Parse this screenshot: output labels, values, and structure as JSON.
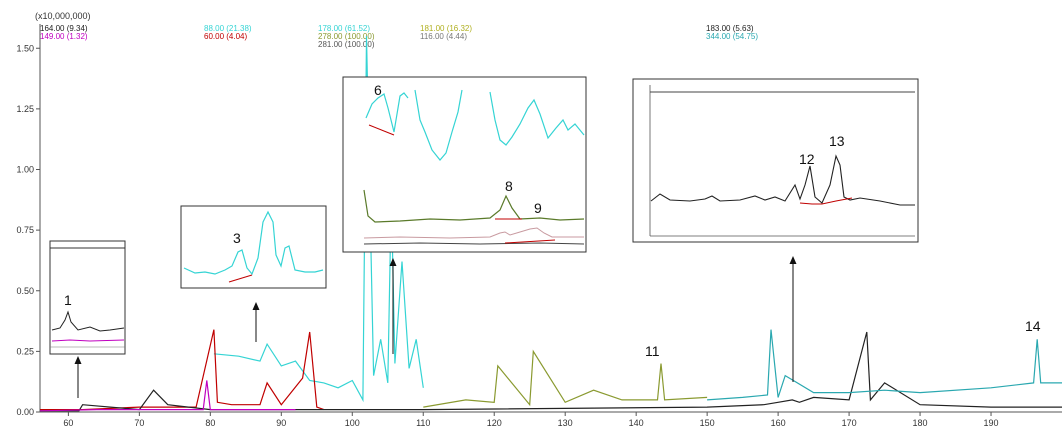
{
  "chart_data": {
    "type": "line",
    "title": "",
    "y_multiplier_label": "(x10,000,000)",
    "xlabel": "",
    "ylabel": "",
    "xlim": [
      56,
      200
    ],
    "ylim": [
      0,
      1.6
    ],
    "x_ticks": [
      "60",
      "70",
      "80",
      "90",
      "100",
      "110",
      "120",
      "130",
      "140",
      "150",
      "160",
      "170",
      "180",
      "190"
    ],
    "x_tick_values": [
      60,
      70,
      80,
      90,
      100,
      110,
      120,
      130,
      140,
      150,
      160,
      170,
      180,
      190
    ],
    "y_ticks": [
      "0.00",
      "0.25",
      "0.50",
      "0.75",
      "1.00",
      "1.25",
      "1.50"
    ],
    "y_tick_values": [
      0,
      0.25,
      0.5,
      0.75,
      1.0,
      1.25,
      1.5
    ],
    "grid": false,
    "legend": {
      "placement": "top",
      "entries": [
        {
          "text": "164.00 (9.34)",
          "color": "#222222"
        },
        {
          "text": "149.00 (1.32)",
          "color": "#c000c0"
        },
        {
          "text": "88.00 (21.38)",
          "color": "#35d4d4"
        },
        {
          "text": "60.00 (4.04)",
          "color": "#c00000"
        },
        {
          "text": "178.00 (61.52)",
          "color": "#35d4d4"
        },
        {
          "text": "278.00 (100.00)",
          "color": "#8a9a30"
        },
        {
          "text": "281.00 (100.00)",
          "color": "#555555"
        },
        {
          "text": "181.00 (16.32)",
          "color": "#b0b020"
        },
        {
          "text": "116.00 (4.44)",
          "color": "#777777"
        },
        {
          "text": "183.00 (5.63)",
          "color": "#222222"
        },
        {
          "text": "344.00 (54.75)",
          "color": "#2aa8b0"
        }
      ]
    },
    "series": [
      {
        "color": "#35d4d4",
        "x": [
          80.5,
          84,
          87,
          88,
          90,
          92,
          94,
          96,
          98,
          100,
          101.5,
          102,
          103,
          104,
          105,
          105.5,
          106,
          107,
          108,
          109,
          110
        ],
        "y": [
          0.24,
          0.23,
          0.21,
          0.28,
          0.19,
          0.21,
          0.13,
          0.12,
          0.1,
          0.13,
          0.05,
          1.55,
          0.15,
          0.3,
          0.12,
          0.9,
          0.2,
          0.62,
          0.18,
          0.3,
          0.1
        ]
      },
      {
        "color": "#c00000",
        "x": [
          56,
          62,
          70,
          78,
          80.5,
          81,
          83,
          87,
          88,
          90,
          93,
          94,
          95,
          96
        ],
        "y": [
          0.01,
          0.01,
          0.02,
          0.02,
          0.34,
          0.04,
          0.03,
          0.03,
          0.12,
          0.03,
          0.14,
          0.33,
          0.02,
          0.01
        ]
      },
      {
        "color": "#222222",
        "x": [
          56,
          61.5,
          62,
          70,
          72,
          74,
          80,
          110,
          150,
          158,
          160,
          162,
          163,
          165,
          170,
          172.5,
          173,
          175,
          180,
          190,
          200
        ],
        "y": [
          0.005,
          0.005,
          0.03,
          0.01,
          0.09,
          0.03,
          0.01,
          0.01,
          0.02,
          0.03,
          0.04,
          0.05,
          0.04,
          0.06,
          0.05,
          0.33,
          0.05,
          0.12,
          0.03,
          0.02,
          0.02
        ]
      },
      {
        "color": "#8a9a30",
        "x": [
          110,
          116,
          120,
          120.5,
          125,
          125.5,
          130,
          134,
          138,
          143,
          143.5,
          144,
          150
        ],
        "y": [
          0.02,
          0.05,
          0.04,
          0.19,
          0.03,
          0.25,
          0.04,
          0.09,
          0.05,
          0.05,
          0.2,
          0.05,
          0.06
        ]
      },
      {
        "color": "#2aa8b0",
        "x": [
          150,
          155,
          158.5,
          159,
          160,
          161,
          165,
          170,
          175,
          180,
          190,
          196,
          196.5,
          197,
          200
        ],
        "y": [
          0.05,
          0.06,
          0.07,
          0.34,
          0.06,
          0.15,
          0.08,
          0.08,
          0.09,
          0.08,
          0.1,
          0.12,
          0.3,
          0.12,
          0.12
        ]
      },
      {
        "color": "#c000c0",
        "x": [
          56,
          64,
          79,
          79.5,
          80,
          92
        ],
        "y": [
          0.005,
          0.01,
          0.01,
          0.13,
          0.01,
          0.01
        ]
      }
    ],
    "annotations": [
      {
        "label": "1",
        "x": 62.5
      },
      {
        "label": "3",
        "x": 87.5
      },
      {
        "label": "6",
        "x": 101
      },
      {
        "label": "8",
        "x": 104
      },
      {
        "label": "9",
        "x": 106
      },
      {
        "label": "11",
        "x": 143.5
      },
      {
        "label": "12",
        "x": 161
      },
      {
        "label": "13",
        "x": 162.5
      },
      {
        "label": "14",
        "x": 196.5
      }
    ]
  },
  "insets": [
    {
      "name": "inset-peak-1",
      "label": "1"
    },
    {
      "name": "inset-peak-3",
      "label": "3"
    },
    {
      "name": "inset-peaks-6-8-9",
      "labels": [
        "6",
        "8",
        "9"
      ]
    },
    {
      "name": "inset-peaks-12-13",
      "labels": [
        "12",
        "13"
      ]
    }
  ]
}
